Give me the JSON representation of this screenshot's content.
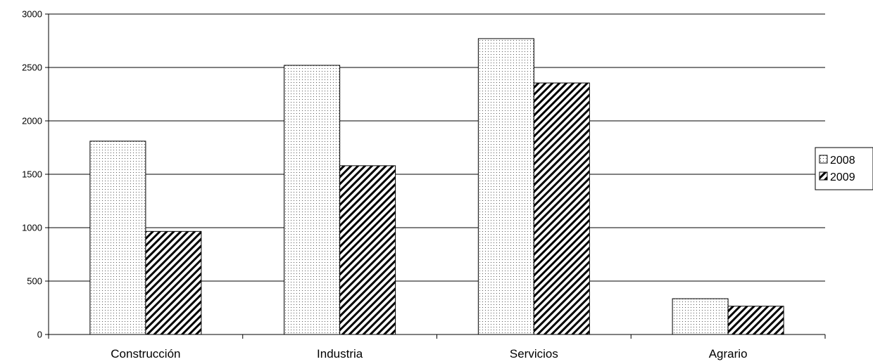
{
  "chart_data": {
    "type": "bar",
    "title": "",
    "xlabel": "",
    "ylabel": "",
    "categories": [
      "Construcción",
      "Industria",
      "Servicios",
      "Agrario"
    ],
    "series": [
      {
        "name": "2008",
        "values": [
          1810,
          2520,
          2770,
          335
        ],
        "pattern": "dots"
      },
      {
        "name": "2009",
        "values": [
          965,
          1580,
          2355,
          265
        ],
        "pattern": "diagonal-hatch"
      }
    ],
    "ylim": [
      0,
      3000
    ],
    "yticks": [
      "0",
      "500",
      "1000",
      "1500",
      "2000",
      "2500",
      "3000"
    ],
    "grid": true,
    "legend": "right",
    "colors": {
      "bar_fill": "#ffffff",
      "pattern": "#000000",
      "grid": "#000000"
    }
  }
}
